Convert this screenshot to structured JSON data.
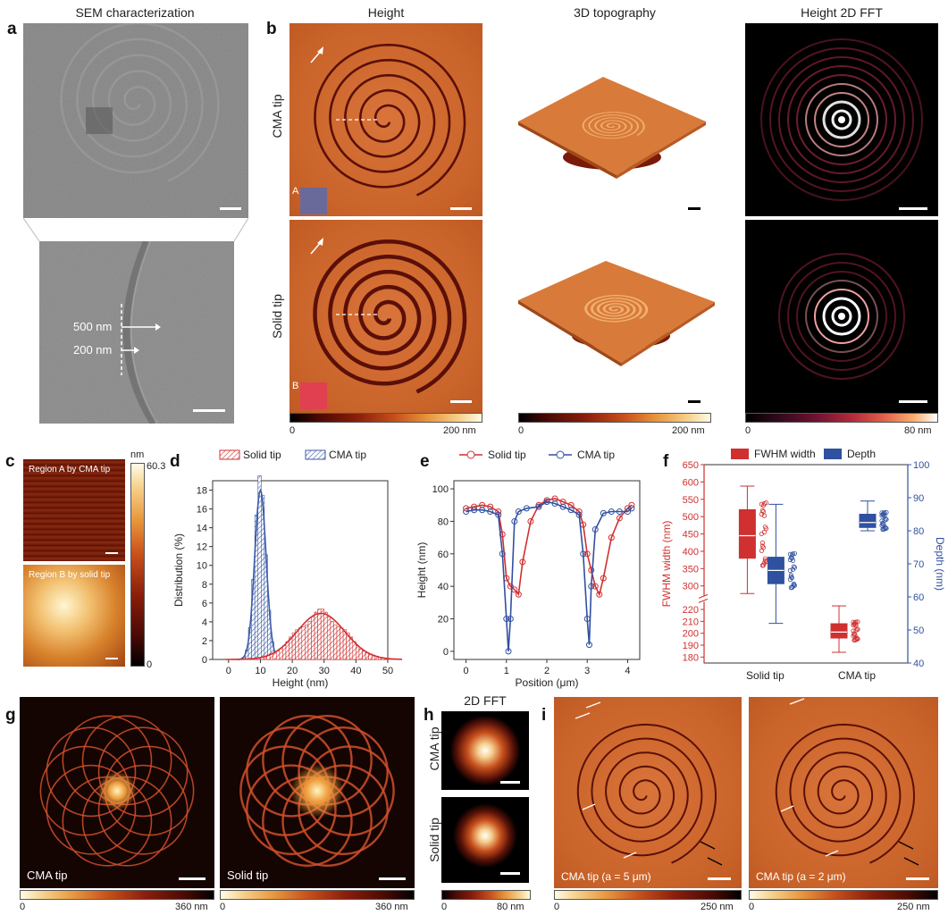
{
  "panel_labels": {
    "a": "a",
    "b": "b",
    "c": "c",
    "d": "d",
    "e": "e",
    "f": "f",
    "g": "g",
    "h": "h",
    "i": "i"
  },
  "titles": {
    "sem": "SEM characterization",
    "height": "Height",
    "topo": "3D topography",
    "fft": "Height 2D FFT",
    "fft2": "2D FFT"
  },
  "row_labels": {
    "cma": "CMA tip",
    "solid": "Solid tip"
  },
  "sem_annot": {
    "l500": "500 nm",
    "l200": "200 nm"
  },
  "region_marks": {
    "A": "A",
    "B": "B"
  },
  "colorbars": {
    "height": {
      "min": "0",
      "max": "200 nm"
    },
    "topo": {
      "min": "0",
      "max": "200 nm"
    },
    "fft": {
      "min": "0",
      "max": "80 nm"
    },
    "c": {
      "unit": "nm",
      "max": "60.3",
      "min": "0"
    },
    "g1": {
      "min": "0",
      "max": "360 nm"
    },
    "g2": {
      "min": "0",
      "max": "360 nm"
    },
    "h": {
      "min": "0",
      "max": "80 nm"
    },
    "i1": {
      "min": "0",
      "max": "250 nm"
    },
    "i2": {
      "min": "0",
      "max": "250 nm"
    }
  },
  "c_labels": {
    "top": "Region A by CMA tip",
    "bottom": "Region B by solid tip"
  },
  "g_labels": {
    "left": "CMA tip",
    "right": "Solid tip"
  },
  "h_labels": {
    "top": "CMA tip",
    "bottom": "Solid tip"
  },
  "i_labels": {
    "left": "CMA tip (a = 5 μm)",
    "right": "CMA tip (a = 2 μm)"
  },
  "chart_data": [
    {
      "id": "d",
      "type": "bar",
      "legend": [
        "Solid tip",
        "CMA tip"
      ],
      "xlabel": "Height (nm)",
      "ylabel": "Distribution (%)",
      "xlim": [
        -5,
        50
      ],
      "ylim": [
        0,
        19
      ],
      "xticks": [
        0,
        10,
        20,
        30,
        40,
        50
      ],
      "yticks": [
        0,
        2,
        4,
        6,
        8,
        10,
        12,
        14,
        16,
        18
      ],
      "series": [
        {
          "name": "CMA tip",
          "color": "#3a5aa8",
          "fit_center": 10,
          "fit_sigma": 1.8,
          "fit_peak": 18
        },
        {
          "name": "Solid tip",
          "color": "#d03030",
          "fit_center": 29,
          "fit_sigma": 7.5,
          "fit_peak": 4.9
        }
      ]
    },
    {
      "id": "e",
      "type": "line",
      "legend": [
        "Solid tip",
        "CMA tip"
      ],
      "xlabel": "Position (μm)",
      "ylabel": "Height (nm)",
      "xlim": [
        -0.3,
        4.3
      ],
      "ylim": [
        -5,
        105
      ],
      "xticks": [
        0,
        1,
        2,
        3,
        4
      ],
      "yticks": [
        0,
        20,
        40,
        60,
        80,
        100
      ],
      "series": [
        {
          "name": "Solid tip",
          "color": "#d03030",
          "x": [
            0,
            0.2,
            0.4,
            0.6,
            0.8,
            0.9,
            1.0,
            1.1,
            1.2,
            1.3,
            1.4,
            1.6,
            1.8,
            2.0,
            2.2,
            2.4,
            2.6,
            2.8,
            2.9,
            3.0,
            3.1,
            3.2,
            3.3,
            3.4,
            3.6,
            3.8,
            4.0,
            4.1
          ],
          "y": [
            88,
            89,
            90,
            89,
            86,
            72,
            45,
            40,
            38,
            35,
            55,
            80,
            90,
            93,
            94,
            92,
            90,
            86,
            78,
            60,
            50,
            40,
            35,
            45,
            70,
            82,
            88,
            90
          ]
        },
        {
          "name": "CMA tip",
          "color": "#3050a0",
          "x": [
            0,
            0.2,
            0.4,
            0.6,
            0.8,
            0.9,
            1.0,
            1.05,
            1.1,
            1.2,
            1.3,
            1.5,
            1.8,
            2.0,
            2.2,
            2.4,
            2.6,
            2.8,
            2.9,
            3.0,
            3.05,
            3.1,
            3.2,
            3.4,
            3.6,
            3.8,
            4.0,
            4.1
          ],
          "y": [
            86,
            87,
            87,
            86,
            84,
            60,
            20,
            0,
            20,
            80,
            86,
            88,
            89,
            92,
            91,
            89,
            87,
            84,
            60,
            20,
            4,
            40,
            75,
            85,
            86,
            86,
            86,
            88
          ]
        }
      ]
    },
    {
      "id": "f",
      "type": "box",
      "legend": [
        "FWHM width",
        "Depth"
      ],
      "categories": [
        "Solid tip",
        "CMA tip"
      ],
      "ylabel_left": "FWHM width (nm)",
      "ylabel_right": "Depth (nm)",
      "yticks_left": [
        180,
        190,
        200,
        210,
        220,
        300,
        350,
        400,
        450,
        500,
        550,
        600,
        650
      ],
      "yticks_right": [
        40,
        50,
        60,
        70,
        80,
        90,
        100
      ],
      "series": [
        {
          "name": "FWHM width",
          "color": "#d03030",
          "boxes": [
            {
              "cat": "Solid tip",
              "min": 278,
              "q1": 380,
              "median": 445,
              "q3": 520,
              "max": 588
            },
            {
              "cat": "CMA tip",
              "min": 184,
              "q1": 196,
              "median": 201,
              "q3": 208,
              "max": 223
            }
          ]
        },
        {
          "name": "Depth",
          "color": "#3050a0",
          "boxes": [
            {
              "cat": "Solid tip",
              "min": 52,
              "q1": 64,
              "median": 68,
              "q3": 72,
              "max": 88
            },
            {
              "cat": "CMA tip",
              "min": 80,
              "q1": 81,
              "median": 82.5,
              "q3": 85,
              "max": 89
            }
          ]
        }
      ]
    }
  ]
}
